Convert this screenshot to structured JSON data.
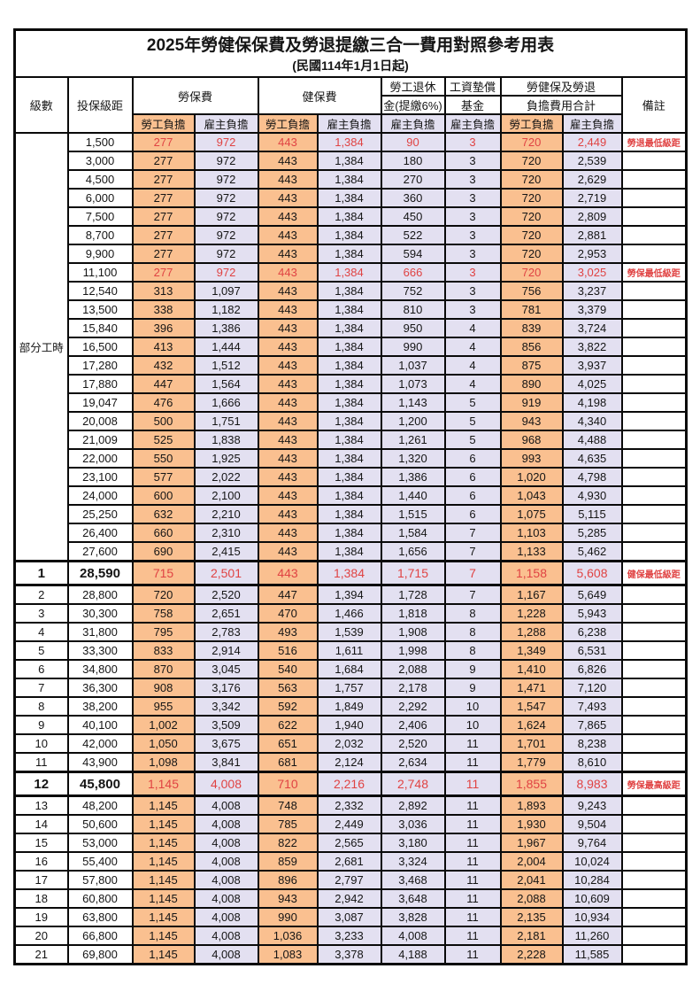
{
  "title": "2025年勞健保保費及勞退提繳三合一費用對照參考用表",
  "subtitle": "(民國114年1月1日起)",
  "header": {
    "level": "級數",
    "bracket": "投保級距",
    "labor_insurance": "勞保費",
    "health_insurance": "健保費",
    "pension_line1": "勞工退休",
    "pension_line2": "金(提繳6%)",
    "wage_fund_line1": "工資墊償",
    "wage_fund_line2": "基金",
    "total_line1": "勞健保及勞退",
    "total_line2": "負擔費用合計",
    "remark": "備註",
    "employee_label": "勞工負擔",
    "employer_label": "雇主負擔"
  },
  "part_time_label": "部分工時",
  "part_time_rowspan": 23,
  "value_column_names": [
    "labor-insurance-employee",
    "labor-insurance-employer",
    "health-insurance-employee",
    "health-insurance-employer",
    "pension-employer",
    "wage-fund-employer",
    "total-employee",
    "total-employer"
  ],
  "value_column_styles": [
    "emp",
    "er",
    "emp",
    "er",
    "er",
    "er",
    "emp",
    "er"
  ],
  "colors": {
    "employee_bg": "#FAC090",
    "employer_bg": "#E3E0F1",
    "highlight_red": "#E04343",
    "border": "#0A0A0A"
  },
  "rows": [
    {
      "level": "",
      "bracket": "1,500",
      "values": [
        "277",
        "972",
        "443",
        "1,384",
        "90",
        "3",
        "720",
        "2,449"
      ],
      "remark": "勞退最低級距",
      "red": true,
      "emphasis": false
    },
    {
      "level": "",
      "bracket": "3,000",
      "values": [
        "277",
        "972",
        "443",
        "1,384",
        "180",
        "3",
        "720",
        "2,539"
      ],
      "remark": "",
      "red": false,
      "emphasis": false
    },
    {
      "level": "",
      "bracket": "4,500",
      "values": [
        "277",
        "972",
        "443",
        "1,384",
        "270",
        "3",
        "720",
        "2,629"
      ],
      "remark": "",
      "red": false,
      "emphasis": false
    },
    {
      "level": "",
      "bracket": "6,000",
      "values": [
        "277",
        "972",
        "443",
        "1,384",
        "360",
        "3",
        "720",
        "2,719"
      ],
      "remark": "",
      "red": false,
      "emphasis": false
    },
    {
      "level": "",
      "bracket": "7,500",
      "values": [
        "277",
        "972",
        "443",
        "1,384",
        "450",
        "3",
        "720",
        "2,809"
      ],
      "remark": "",
      "red": false,
      "emphasis": false
    },
    {
      "level": "",
      "bracket": "8,700",
      "values": [
        "277",
        "972",
        "443",
        "1,384",
        "522",
        "3",
        "720",
        "2,881"
      ],
      "remark": "",
      "red": false,
      "emphasis": false
    },
    {
      "level": "",
      "bracket": "9,900",
      "values": [
        "277",
        "972",
        "443",
        "1,384",
        "594",
        "3",
        "720",
        "2,953"
      ],
      "remark": "",
      "red": false,
      "emphasis": false
    },
    {
      "level": "",
      "bracket": "11,100",
      "values": [
        "277",
        "972",
        "443",
        "1,384",
        "666",
        "3",
        "720",
        "3,025"
      ],
      "remark": "勞保最低級距",
      "red": true,
      "emphasis": false
    },
    {
      "level": "",
      "bracket": "12,540",
      "values": [
        "313",
        "1,097",
        "443",
        "1,384",
        "752",
        "3",
        "756",
        "3,237"
      ],
      "remark": "",
      "red": false,
      "emphasis": false
    },
    {
      "level": "",
      "bracket": "13,500",
      "values": [
        "338",
        "1,182",
        "443",
        "1,384",
        "810",
        "3",
        "781",
        "3,379"
      ],
      "remark": "",
      "red": false,
      "emphasis": false
    },
    {
      "level": "",
      "bracket": "15,840",
      "values": [
        "396",
        "1,386",
        "443",
        "1,384",
        "950",
        "4",
        "839",
        "3,724"
      ],
      "remark": "",
      "red": false,
      "emphasis": false
    },
    {
      "level": "",
      "bracket": "16,500",
      "values": [
        "413",
        "1,444",
        "443",
        "1,384",
        "990",
        "4",
        "856",
        "3,822"
      ],
      "remark": "",
      "red": false,
      "emphasis": false
    },
    {
      "level": "",
      "bracket": "17,280",
      "values": [
        "432",
        "1,512",
        "443",
        "1,384",
        "1,037",
        "4",
        "875",
        "3,937"
      ],
      "remark": "",
      "red": false,
      "emphasis": false
    },
    {
      "level": "",
      "bracket": "17,880",
      "values": [
        "447",
        "1,564",
        "443",
        "1,384",
        "1,073",
        "4",
        "890",
        "4,025"
      ],
      "remark": "",
      "red": false,
      "emphasis": false
    },
    {
      "level": "",
      "bracket": "19,047",
      "values": [
        "476",
        "1,666",
        "443",
        "1,384",
        "1,143",
        "5",
        "919",
        "4,198"
      ],
      "remark": "",
      "red": false,
      "emphasis": false
    },
    {
      "level": "",
      "bracket": "20,008",
      "values": [
        "500",
        "1,751",
        "443",
        "1,384",
        "1,200",
        "5",
        "943",
        "4,340"
      ],
      "remark": "",
      "red": false,
      "emphasis": false
    },
    {
      "level": "",
      "bracket": "21,009",
      "values": [
        "525",
        "1,838",
        "443",
        "1,384",
        "1,261",
        "5",
        "968",
        "4,488"
      ],
      "remark": "",
      "red": false,
      "emphasis": false
    },
    {
      "level": "",
      "bracket": "22,000",
      "values": [
        "550",
        "1,925",
        "443",
        "1,384",
        "1,320",
        "6",
        "993",
        "4,635"
      ],
      "remark": "",
      "red": false,
      "emphasis": false
    },
    {
      "level": "",
      "bracket": "23,100",
      "values": [
        "577",
        "2,022",
        "443",
        "1,384",
        "1,386",
        "6",
        "1,020",
        "4,798"
      ],
      "remark": "",
      "red": false,
      "emphasis": false
    },
    {
      "level": "",
      "bracket": "24,000",
      "values": [
        "600",
        "2,100",
        "443",
        "1,384",
        "1,440",
        "6",
        "1,043",
        "4,930"
      ],
      "remark": "",
      "red": false,
      "emphasis": false
    },
    {
      "level": "",
      "bracket": "25,250",
      "values": [
        "632",
        "2,210",
        "443",
        "1,384",
        "1,515",
        "6",
        "1,075",
        "5,115"
      ],
      "remark": "",
      "red": false,
      "emphasis": false
    },
    {
      "level": "",
      "bracket": "26,400",
      "values": [
        "660",
        "2,310",
        "443",
        "1,384",
        "1,584",
        "7",
        "1,103",
        "5,285"
      ],
      "remark": "",
      "red": false,
      "emphasis": false
    },
    {
      "level": "",
      "bracket": "27,600",
      "values": [
        "690",
        "2,415",
        "443",
        "1,384",
        "1,656",
        "7",
        "1,133",
        "5,462"
      ],
      "remark": "",
      "red": false,
      "emphasis": false
    },
    {
      "level": "1",
      "bracket": "28,590",
      "values": [
        "715",
        "2,501",
        "443",
        "1,384",
        "1,715",
        "7",
        "1,158",
        "5,608"
      ],
      "remark": "健保最低級距",
      "red": true,
      "emphasis": true
    },
    {
      "level": "2",
      "bracket": "28,800",
      "values": [
        "720",
        "2,520",
        "447",
        "1,394",
        "1,728",
        "7",
        "1,167",
        "5,649"
      ],
      "remark": "",
      "red": false,
      "emphasis": false
    },
    {
      "level": "3",
      "bracket": "30,300",
      "values": [
        "758",
        "2,651",
        "470",
        "1,466",
        "1,818",
        "8",
        "1,228",
        "5,943"
      ],
      "remark": "",
      "red": false,
      "emphasis": false
    },
    {
      "level": "4",
      "bracket": "31,800",
      "values": [
        "795",
        "2,783",
        "493",
        "1,539",
        "1,908",
        "8",
        "1,288",
        "6,238"
      ],
      "remark": "",
      "red": false,
      "emphasis": false
    },
    {
      "level": "5",
      "bracket": "33,300",
      "values": [
        "833",
        "2,914",
        "516",
        "1,611",
        "1,998",
        "8",
        "1,349",
        "6,531"
      ],
      "remark": "",
      "red": false,
      "emphasis": false
    },
    {
      "level": "6",
      "bracket": "34,800",
      "values": [
        "870",
        "3,045",
        "540",
        "1,684",
        "2,088",
        "9",
        "1,410",
        "6,826"
      ],
      "remark": "",
      "red": false,
      "emphasis": false
    },
    {
      "level": "7",
      "bracket": "36,300",
      "values": [
        "908",
        "3,176",
        "563",
        "1,757",
        "2,178",
        "9",
        "1,471",
        "7,120"
      ],
      "remark": "",
      "red": false,
      "emphasis": false
    },
    {
      "level": "8",
      "bracket": "38,200",
      "values": [
        "955",
        "3,342",
        "592",
        "1,849",
        "2,292",
        "10",
        "1,547",
        "7,493"
      ],
      "remark": "",
      "red": false,
      "emphasis": false
    },
    {
      "level": "9",
      "bracket": "40,100",
      "values": [
        "1,002",
        "3,509",
        "622",
        "1,940",
        "2,406",
        "10",
        "1,624",
        "7,865"
      ],
      "remark": "",
      "red": false,
      "emphasis": false
    },
    {
      "level": "10",
      "bracket": "42,000",
      "values": [
        "1,050",
        "3,675",
        "651",
        "2,032",
        "2,520",
        "11",
        "1,701",
        "8,238"
      ],
      "remark": "",
      "red": false,
      "emphasis": false
    },
    {
      "level": "11",
      "bracket": "43,900",
      "values": [
        "1,098",
        "3,841",
        "681",
        "2,124",
        "2,634",
        "11",
        "1,779",
        "8,610"
      ],
      "remark": "",
      "red": false,
      "emphasis": false
    },
    {
      "level": "12",
      "bracket": "45,800",
      "values": [
        "1,145",
        "4,008",
        "710",
        "2,216",
        "2,748",
        "11",
        "1,855",
        "8,983"
      ],
      "remark": "勞保最高級距",
      "red": true,
      "emphasis": true
    },
    {
      "level": "13",
      "bracket": "48,200",
      "values": [
        "1,145",
        "4,008",
        "748",
        "2,332",
        "2,892",
        "11",
        "1,893",
        "9,243"
      ],
      "remark": "",
      "red": false,
      "emphasis": false
    },
    {
      "level": "14",
      "bracket": "50,600",
      "values": [
        "1,145",
        "4,008",
        "785",
        "2,449",
        "3,036",
        "11",
        "1,930",
        "9,504"
      ],
      "remark": "",
      "red": false,
      "emphasis": false
    },
    {
      "level": "15",
      "bracket": "53,000",
      "values": [
        "1,145",
        "4,008",
        "822",
        "2,565",
        "3,180",
        "11",
        "1,967",
        "9,764"
      ],
      "remark": "",
      "red": false,
      "emphasis": false
    },
    {
      "level": "16",
      "bracket": "55,400",
      "values": [
        "1,145",
        "4,008",
        "859",
        "2,681",
        "3,324",
        "11",
        "2,004",
        "10,024"
      ],
      "remark": "",
      "red": false,
      "emphasis": false
    },
    {
      "level": "17",
      "bracket": "57,800",
      "values": [
        "1,145",
        "4,008",
        "896",
        "2,797",
        "3,468",
        "11",
        "2,041",
        "10,284"
      ],
      "remark": "",
      "red": false,
      "emphasis": false
    },
    {
      "level": "18",
      "bracket": "60,800",
      "values": [
        "1,145",
        "4,008",
        "943",
        "2,942",
        "3,648",
        "11",
        "2,088",
        "10,609"
      ],
      "remark": "",
      "red": false,
      "emphasis": false
    },
    {
      "level": "19",
      "bracket": "63,800",
      "values": [
        "1,145",
        "4,008",
        "990",
        "3,087",
        "3,828",
        "11",
        "2,135",
        "10,934"
      ],
      "remark": "",
      "red": false,
      "emphasis": false
    },
    {
      "level": "20",
      "bracket": "66,800",
      "values": [
        "1,145",
        "4,008",
        "1,036",
        "3,233",
        "4,008",
        "11",
        "2,181",
        "11,260"
      ],
      "remark": "",
      "red": false,
      "emphasis": false
    },
    {
      "level": "21",
      "bracket": "69,800",
      "values": [
        "1,145",
        "4,008",
        "1,083",
        "3,378",
        "4,188",
        "11",
        "2,228",
        "11,585"
      ],
      "remark": "",
      "red": false,
      "emphasis": false
    }
  ]
}
